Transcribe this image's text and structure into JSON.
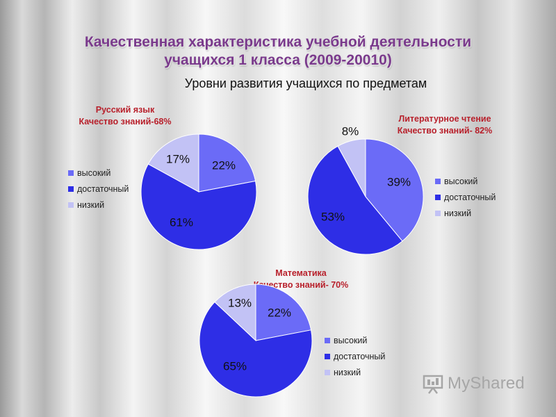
{
  "header": {
    "title_line1": "Качественная характеристика учебной деятельности",
    "title_line2": "учащихся 1 класса (2009-20010)",
    "subtitle": "Уровни развития учащихся по предметам"
  },
  "colors": {
    "high": "#6b6bf7",
    "sufficient": "#2e2ee6",
    "low": "#c2c2f5"
  },
  "chart_data": [
    {
      "type": "pie",
      "subject": "Русский язык",
      "quality": "Качество знаний-68%",
      "categories": [
        "высокий",
        "достаточный",
        "низкий"
      ],
      "values": [
        22,
        61,
        17
      ],
      "labels": [
        "22%",
        "61%",
        "17%"
      ],
      "legend_position": "left"
    },
    {
      "type": "pie",
      "subject": "Литературное чтение",
      "quality": "Качество знаний- 82%",
      "categories": [
        "высокий",
        "достаточный",
        "низкий"
      ],
      "values": [
        39,
        53,
        8
      ],
      "labels": [
        "39%",
        "53%",
        "8%"
      ],
      "legend_position": "right"
    },
    {
      "type": "pie",
      "subject": "Математика",
      "quality": "Качество знаний- 70%",
      "categories": [
        "высокий",
        "достаточный",
        "низкий"
      ],
      "values": [
        22,
        65,
        13
      ],
      "labels": [
        "22%",
        "65%",
        "13%"
      ],
      "legend_position": "right"
    }
  ],
  "watermark": {
    "text": "MyShared"
  }
}
